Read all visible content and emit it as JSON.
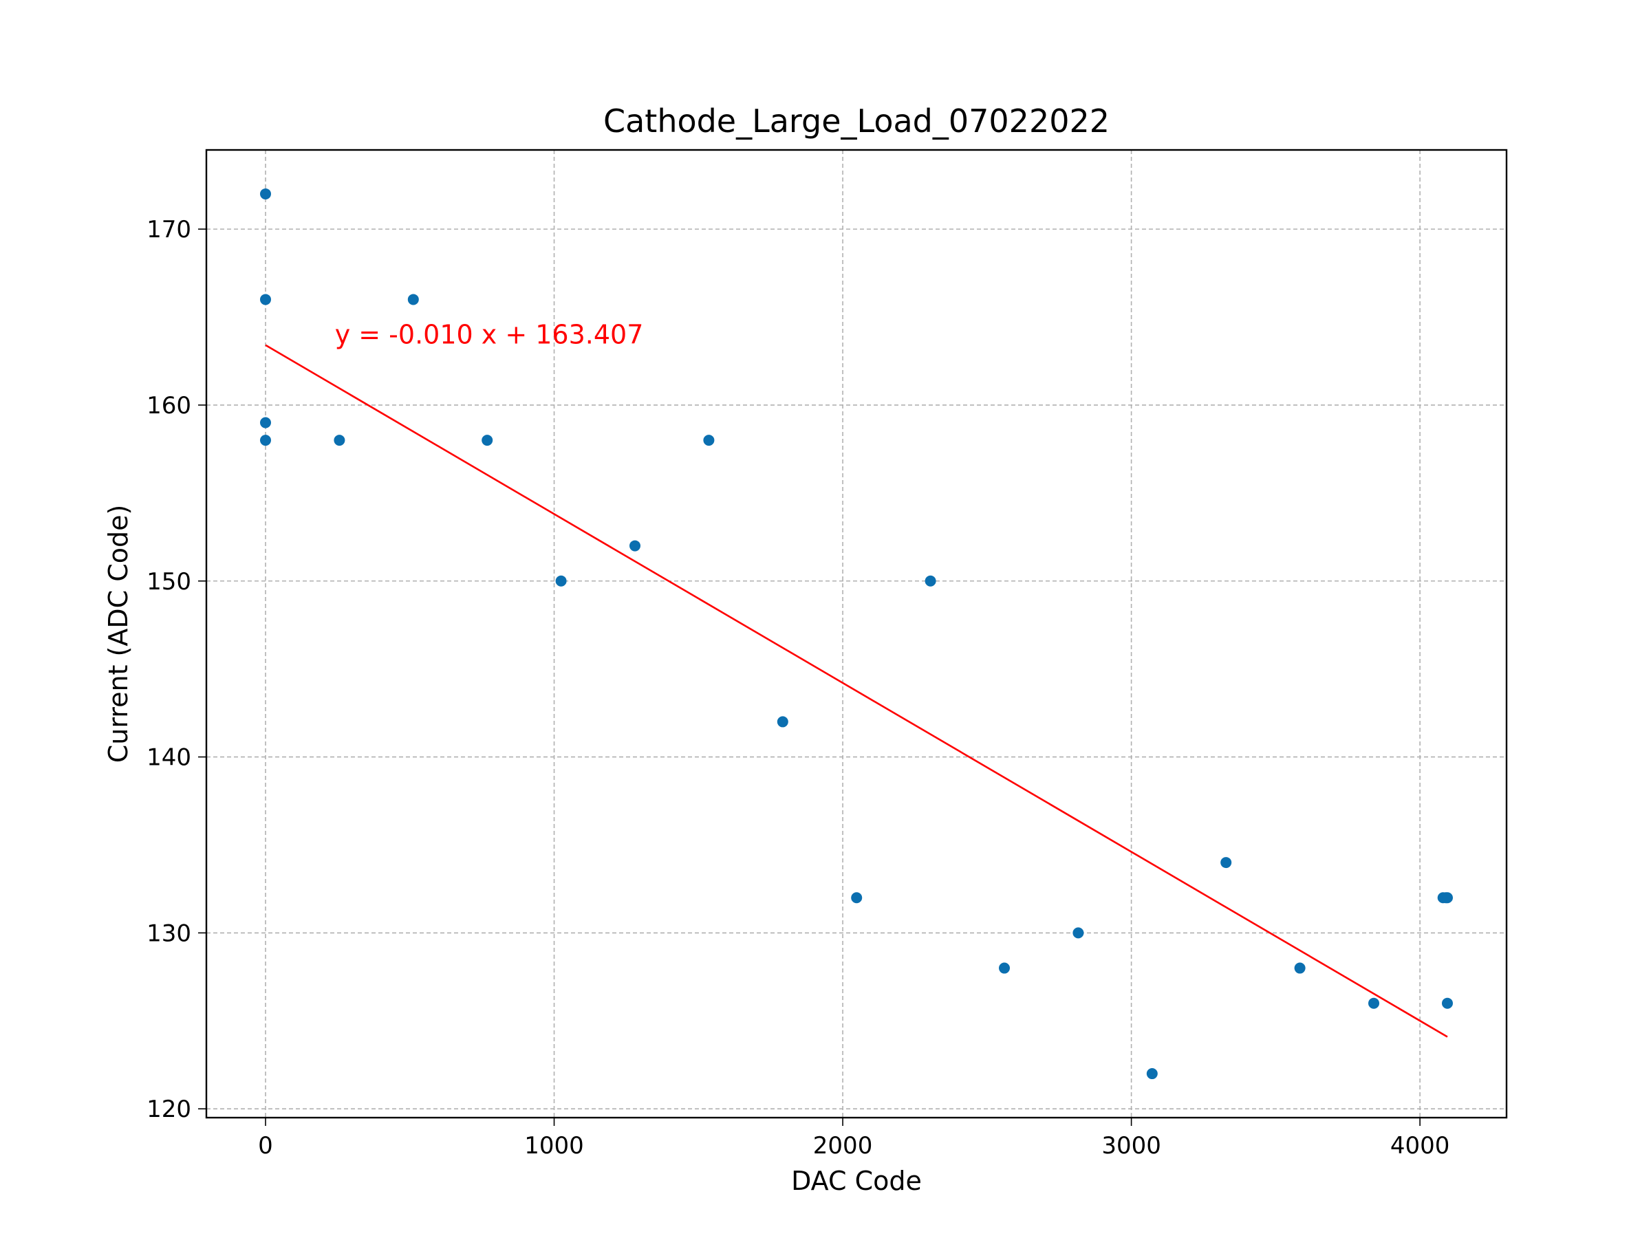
{
  "chart_data": {
    "type": "scatter",
    "title": "Cathode_Large_Load_07022022",
    "xlabel": "DAC Code",
    "ylabel": "Current (ADC Code)",
    "xlim": [
      -205,
      4300
    ],
    "ylim": [
      119.5,
      174.5
    ],
    "xticks": [
      0,
      1000,
      2000,
      3000,
      4000
    ],
    "yticks": [
      120,
      130,
      140,
      150,
      160,
      170
    ],
    "grid": true,
    "points": [
      [
        0,
        172
      ],
      [
        0,
        166
      ],
      [
        0,
        159
      ],
      [
        0,
        158
      ],
      [
        256,
        158
      ],
      [
        512,
        166
      ],
      [
        768,
        158
      ],
      [
        1024,
        150
      ],
      [
        1280,
        152
      ],
      [
        1536,
        158
      ],
      [
        1792,
        142
      ],
      [
        2048,
        132
      ],
      [
        2304,
        150
      ],
      [
        2560,
        128
      ],
      [
        2816,
        130
      ],
      [
        3072,
        122
      ],
      [
        3328,
        134
      ],
      [
        3584,
        128
      ],
      [
        3840,
        126
      ],
      [
        4080,
        132
      ],
      [
        4090,
        132
      ],
      [
        4095,
        132
      ],
      [
        4095,
        126
      ]
    ],
    "fit_line": {
      "slope": -0.0096,
      "intercept": 163.407,
      "x_range": [
        0,
        4095
      ]
    },
    "annotation": {
      "text": "y = -0.010 x + 163.407",
      "x": 240,
      "y": 163.5
    },
    "colors": {
      "points": "#0b6fb0",
      "fit": "#ff0000"
    }
  }
}
